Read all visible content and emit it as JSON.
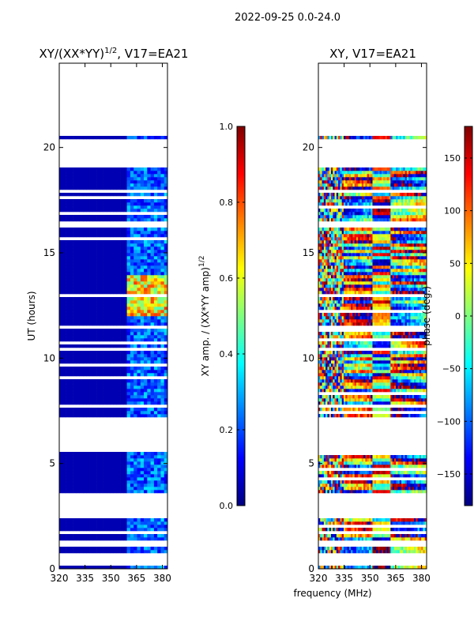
{
  "figure_title": "2022-09-25 0.0-24.0",
  "colors": {
    "no_data": "#ffffff",
    "frame": "#000000",
    "jet": [
      "#00007f",
      "#0000ff",
      "#007fff",
      "#00ffff",
      "#7fff7f",
      "#ffff00",
      "#ff7f00",
      "#ff0000",
      "#7f0000"
    ]
  },
  "chart_data": [
    {
      "type": "heatmap",
      "title_base": "XY/(XX*YY)",
      "title_sup": "1/2",
      "title_suffix": ", V17=EA21",
      "xlabel": "",
      "ylabel": "UT (hours)",
      "xlim": [
        320,
        383
      ],
      "ylim": [
        0,
        24
      ],
      "xticks": [
        320,
        335,
        350,
        365,
        380
      ],
      "yticks": [
        0,
        5,
        10,
        15,
        20
      ],
      "colorbar": {
        "label": "XY amp. / (XX*YY amp)",
        "label_sup": "1/2",
        "vmin": 0.0,
        "vmax": 1.0,
        "ticks": [
          "0.0",
          "0.2",
          "0.4",
          "0.6",
          "0.8",
          "1.0"
        ],
        "tick_values": [
          0.0,
          0.2,
          0.4,
          0.6,
          0.8,
          1.0
        ]
      },
      "data_hour_ranges": [
        [
          0.0,
          0.2
        ],
        [
          0.8,
          1.0
        ],
        [
          1.3,
          1.9
        ],
        [
          2.0,
          2.4
        ],
        [
          3.6,
          5.5
        ],
        [
          7.2,
          10.3
        ],
        [
          10.5,
          12.9
        ],
        [
          13.0,
          16.2
        ],
        [
          16.5,
          17.8
        ],
        [
          18.0,
          19.0
        ],
        [
          20.4,
          20.6
        ]
      ],
      "typical_amp_below_360MHz": 0.05,
      "typical_amp_360_to_383MHz": 0.25,
      "peak_amp_UT_12_to_14": 0.75
    },
    {
      "type": "heatmap",
      "title": "XY, V17=EA21",
      "xlabel": "frequency (MHz)",
      "ylabel": "",
      "xlim": [
        320,
        383
      ],
      "ylim": [
        0,
        24
      ],
      "xticks": [
        320,
        335,
        350,
        365,
        380
      ],
      "yticks": [
        0,
        5,
        10,
        15,
        20
      ],
      "colorbar": {
        "label": "phase (deg.)",
        "vmin": -180,
        "vmax": 180,
        "ticks": [
          "−150",
          "−100",
          "−50",
          "0",
          "50",
          "100",
          "150"
        ],
        "tick_values": [
          -150,
          -100,
          -50,
          0,
          50,
          100,
          150
        ]
      },
      "data_hour_ranges": [
        [
          0.0,
          0.2
        ],
        [
          0.8,
          1.0
        ],
        [
          1.3,
          1.9
        ],
        [
          2.0,
          2.4
        ],
        [
          3.6,
          5.5
        ],
        [
          7.2,
          10.3
        ],
        [
          10.5,
          12.9
        ],
        [
          13.0,
          16.2
        ],
        [
          16.5,
          17.8
        ],
        [
          18.0,
          19.0
        ],
        [
          20.4,
          20.6
        ]
      ],
      "phase_range_deg": [
        -180,
        180
      ]
    }
  ]
}
